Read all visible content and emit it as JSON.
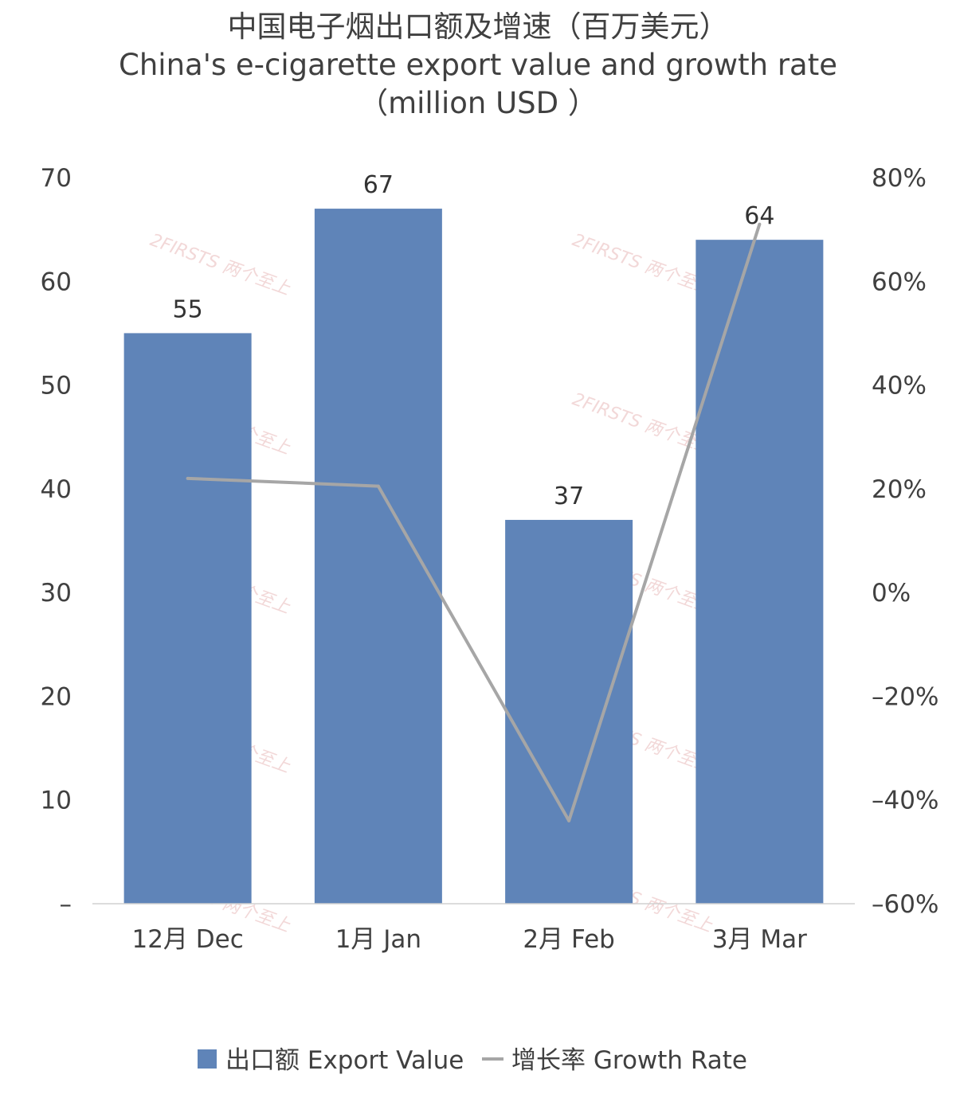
{
  "chart_data": {
    "type": "bar",
    "title": [
      "中国电子烟出口额及增速（百万美元）",
      "China's e-cigarette export value and growth rate",
      "（million USD ）"
    ],
    "categories": [
      "12月 Dec",
      "1月 Jan",
      "2月 Feb",
      "3月 Mar"
    ],
    "series": [
      {
        "name": "出口额 Export Value",
        "type": "bar",
        "axis": "left",
        "color": "#5f84b8",
        "values": [
          55,
          67,
          37,
          64
        ],
        "labels": [
          "55",
          "67",
          "37",
          "64"
        ]
      },
      {
        "name": "增长率 Growth Rate",
        "type": "line",
        "axis": "right",
        "color": "#a6a6a6",
        "values": [
          22,
          20.5,
          -44,
          71
        ]
      }
    ],
    "y_left": {
      "ylim": [
        0,
        70
      ],
      "ticks": [
        0,
        10,
        20,
        30,
        40,
        50,
        60,
        70
      ],
      "tick_labels": [
        "–",
        "10",
        "20",
        "30",
        "40",
        "50",
        "60",
        "70"
      ]
    },
    "y_right": {
      "ylim": [
        -60,
        80
      ],
      "ticks": [
        -60,
        -40,
        -20,
        0,
        20,
        40,
        60,
        80
      ],
      "tick_labels": [
        "–60%",
        "–40%",
        "–20%",
        "0%",
        "20%",
        "40%",
        "60%",
        "80%"
      ]
    },
    "grid": false,
    "legend": {
      "placement": "bottom",
      "entries": [
        "出口额 Export Value",
        "增长率 Growth Rate"
      ]
    },
    "watermark": "2FIRSTS 两个至上"
  }
}
